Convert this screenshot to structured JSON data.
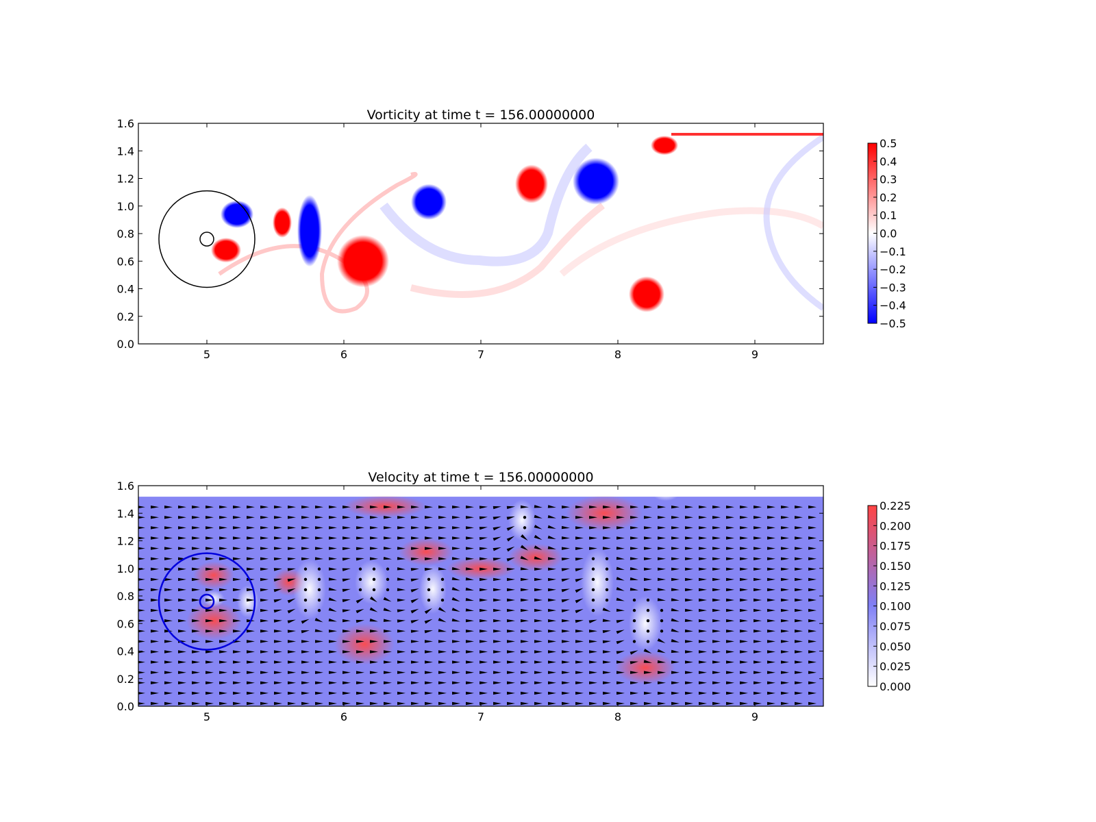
{
  "chart_data": [
    {
      "type": "heatmap",
      "title": "Vorticity at time t =   156.00000000",
      "xlabel": "",
      "ylabel": "",
      "xlim": [
        4.5,
        9.5
      ],
      "ylim": [
        0.0,
        1.6
      ],
      "xticks": [
        "5",
        "6",
        "7",
        "8",
        "9"
      ],
      "xtick_values": [
        5,
        6,
        7,
        8,
        9
      ],
      "yticks": [
        "0.0",
        "0.2",
        "0.4",
        "0.6",
        "0.8",
        "1.0",
        "1.2",
        "1.4",
        "1.6"
      ],
      "ytick_values": [
        0.0,
        0.2,
        0.4,
        0.6,
        0.8,
        1.0,
        1.2,
        1.4,
        1.6
      ],
      "colormap": "bwr",
      "colorbar": {
        "min": -0.5,
        "max": 0.5,
        "ticks": [
          "0.5",
          "0.4",
          "0.3",
          "0.2",
          "0.1",
          "0.0",
          "−0.1",
          "−0.2",
          "−0.3",
          "−0.4",
          "−0.5"
        ],
        "tick_values": [
          0.5,
          0.4,
          0.3,
          0.2,
          0.1,
          0.0,
          -0.1,
          -0.2,
          -0.3,
          -0.4,
          -0.5
        ]
      },
      "domain_top": 1.52,
      "vortices": [
        {
          "x": 5.55,
          "y": 0.88,
          "rx": 0.07,
          "ry": 0.11,
          "sign": 1,
          "strength": 0.5
        },
        {
          "x": 5.75,
          "y": 0.82,
          "rx": 0.09,
          "ry": 0.26,
          "sign": -1,
          "strength": 0.5
        },
        {
          "x": 6.14,
          "y": 0.6,
          "rx": 0.19,
          "ry": 0.19,
          "sign": 1,
          "strength": 0.5
        },
        {
          "x": 6.62,
          "y": 1.03,
          "rx": 0.13,
          "ry": 0.13,
          "sign": -1,
          "strength": 0.5
        },
        {
          "x": 7.37,
          "y": 1.16,
          "rx": 0.12,
          "ry": 0.14,
          "sign": 1,
          "strength": 0.5
        },
        {
          "x": 7.84,
          "y": 1.18,
          "rx": 0.17,
          "ry": 0.17,
          "sign": -1,
          "strength": 0.5
        },
        {
          "x": 8.21,
          "y": 0.36,
          "rx": 0.13,
          "ry": 0.13,
          "sign": 1,
          "strength": 0.5
        },
        {
          "x": 8.34,
          "y": 1.44,
          "rx": 0.1,
          "ry": 0.07,
          "sign": 1,
          "strength": 0.5
        },
        {
          "x": 5.22,
          "y": 0.94,
          "rx": 0.12,
          "ry": 0.1,
          "sign": -1,
          "strength": 0.5
        },
        {
          "x": 5.14,
          "y": 0.68,
          "rx": 0.11,
          "ry": 0.09,
          "sign": 1,
          "strength": 0.5
        }
      ],
      "circles": [
        {
          "x": 5.0,
          "y": 0.76,
          "r": 0.35,
          "color": "#000000"
        },
        {
          "x": 5.0,
          "y": 0.76,
          "r": 0.05,
          "color": "#000000"
        }
      ]
    },
    {
      "type": "heatmap",
      "title": "Velocity at time t =   156.00000000",
      "xlabel": "",
      "ylabel": "",
      "xlim": [
        4.5,
        9.5
      ],
      "ylim": [
        0.0,
        1.6
      ],
      "xticks": [
        "5",
        "6",
        "7",
        "8",
        "9"
      ],
      "xtick_values": [
        5,
        6,
        7,
        8,
        9
      ],
      "yticks": [
        "0.0",
        "0.2",
        "0.4",
        "0.6",
        "0.8",
        "1.0",
        "1.2",
        "1.4",
        "1.6"
      ],
      "ytick_values": [
        0.0,
        0.2,
        0.4,
        0.6,
        0.8,
        1.0,
        1.2,
        1.4,
        1.6
      ],
      "colormap": "white-blue-red",
      "colorbar": {
        "min": 0.0,
        "max": 0.225,
        "ticks": [
          "0.225",
          "0.200",
          "0.175",
          "0.150",
          "0.125",
          "0.100",
          "0.075",
          "0.050",
          "0.025",
          "0.000"
        ],
        "tick_values": [
          0.225,
          0.2,
          0.175,
          0.15,
          0.125,
          0.1,
          0.075,
          0.05,
          0.025,
          0.0
        ]
      },
      "domain_top": 1.52,
      "background_speed": 0.1,
      "quiver": {
        "dx": 0.1,
        "dy": 0.075,
        "x0": 4.52,
        "y0": 0.0
      },
      "circles": [
        {
          "x": 5.0,
          "y": 0.76,
          "r": 0.35,
          "color": "#0000dd"
        },
        {
          "x": 5.0,
          "y": 0.76,
          "r": 0.05,
          "color": "#0000dd"
        }
      ],
      "colors": {
        "low": "#ffffff",
        "mid": "#7f7ff5",
        "high": "#ff4444"
      }
    }
  ]
}
